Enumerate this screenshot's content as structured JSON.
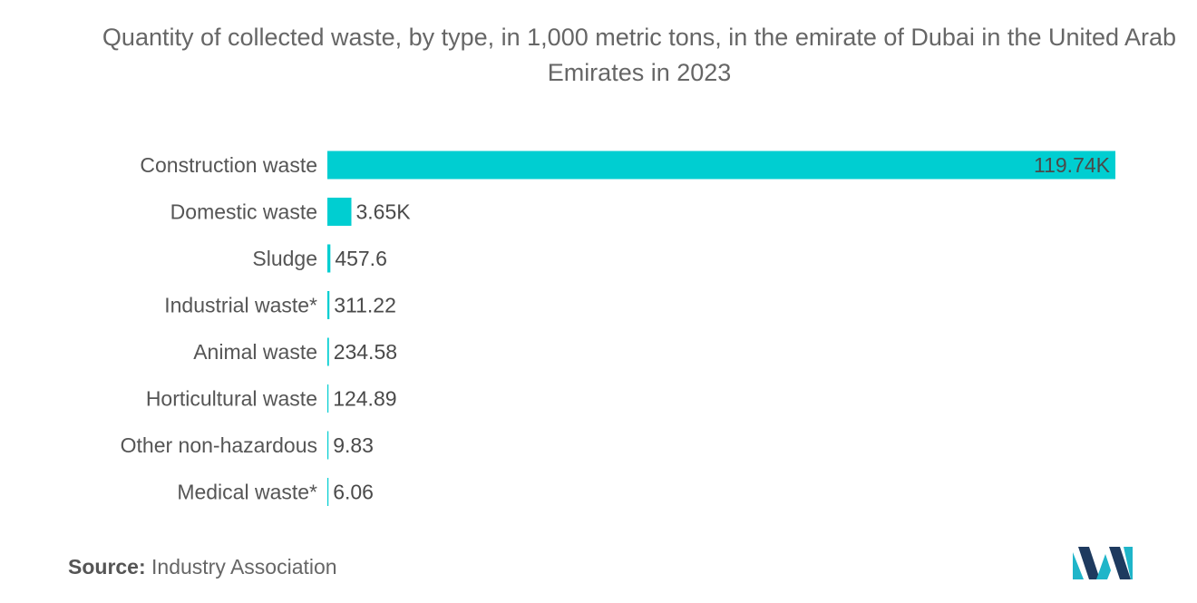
{
  "chart_data": {
    "type": "bar",
    "orientation": "horizontal",
    "title": "Quantity of collected waste, by type, in 1,000 metric tons, in the emirate of Dubai in the United Arab Emirates in 2023",
    "categories": [
      "Construction waste",
      "Domestic waste",
      "Sludge",
      "Industrial waste*",
      "Animal waste",
      "Horticultural waste",
      "Other non-hazardous",
      "Medical waste*"
    ],
    "values": [
      119740,
      3650,
      457.6,
      311.22,
      234.58,
      124.89,
      9.83,
      6.06
    ],
    "value_labels": [
      "119.74K",
      "3.65K",
      "457.6",
      "311.22",
      "234.58",
      "124.89",
      "9.83",
      "6.06"
    ],
    "xlim": [
      0,
      119740
    ],
    "grid": false,
    "legend": "none",
    "bar_color": "#00CED1"
  },
  "source": {
    "label": "Source:",
    "text": "Industry Association"
  },
  "logo": {
    "icon": "mordor-intelligence-logo-icon",
    "colors": [
      "#1E3A5F",
      "#1FB5C9"
    ]
  }
}
